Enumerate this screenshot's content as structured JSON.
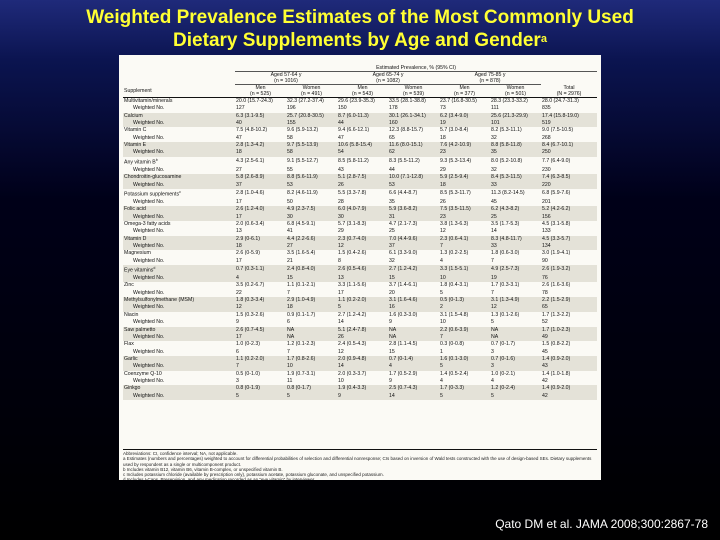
{
  "title": {
    "line1": "Weighted Prevalence Estimates of the Most Commonly Used",
    "line2": "Dietary Supplements by Age and Gender",
    "superscript": "a"
  },
  "table": {
    "caption": "Estimated Prevalence, % (95% CI)",
    "supplement_header": "Supplement",
    "groups": [
      {
        "label": "Aged 57-64 y",
        "n": "(n = 1016)"
      },
      {
        "label": "Aged 65-74 y",
        "n": "(n = 1082)"
      },
      {
        "label": "Aged 75-85 y",
        "n": "(n = 878)"
      }
    ],
    "columns": [
      "Men (n = 525)",
      "Women (n = 491)",
      "Men (n = 543)",
      "Women (n = 539)",
      "Men (n = 377)",
      "Women (n = 501)",
      "Total (N = 2976)"
    ],
    "rows": [
      {
        "label": "Multivitamin/minerals",
        "sub": false,
        "cells": [
          "20.0 (15.7-24.3)",
          "32.3 (27.2-37.4)",
          "29.6 (23.9-35.3)",
          "33.5 (28.1-38.8)",
          "23.7 (16.8-30.5)",
          "28.3 (23.3-33.2)",
          "28.0 (24.7-31.3)"
        ]
      },
      {
        "label": "Weighted No.",
        "sub": true,
        "cells": [
          "127",
          "196",
          "150",
          "178",
          "73",
          "111",
          "835"
        ]
      },
      {
        "label": "Calcium",
        "sub": false,
        "cells": [
          "6.3 (3.1-9.5)",
          "25.7 (20.8-30.5)",
          "8.7 (6.0-11.3)",
          "30.1 (26.1-34.1)",
          "6.2 (3.4-9.0)",
          "25.6 (21.3-29.9)",
          "17.4 (15.8-19.0)"
        ]
      },
      {
        "label": "Weighted No.",
        "sub": true,
        "cells": [
          "40",
          "155",
          "44",
          "160",
          "19",
          "101",
          "519"
        ]
      },
      {
        "label": "Vitamin C",
        "sub": false,
        "cells": [
          "7.5 (4.8-10.2)",
          "9.6 (5.9-13.2)",
          "9.4 (6.6-12.1)",
          "12.3 (8.8-15.7)",
          "5.7 (3.0-8.4)",
          "8.2 (5.3-11.1)",
          "9.0 (7.5-10.5)"
        ]
      },
      {
        "label": "Weighted No.",
        "sub": true,
        "cells": [
          "47",
          "58",
          "47",
          "65",
          "18",
          "32",
          "268"
        ]
      },
      {
        "label": "Vitamin E",
        "sub": false,
        "cells": [
          "2.8 (1.3-4.2)",
          "9.7 (5.5-13.9)",
          "10.6 (5.8-15.4)",
          "11.6 (8.0-15.1)",
          "7.6 (4.2-10.9)",
          "8.8 (5.8-11.8)",
          "8.4 (6.7-10.1)"
        ]
      },
      {
        "label": "Weighted No.",
        "sub": true,
        "cells": [
          "18",
          "58",
          "54",
          "62",
          "23",
          "35",
          "250"
        ]
      },
      {
        "label": "Any vitamin B",
        "sup": "b",
        "sub": false,
        "cells": [
          "4.3 (2.5-6.1)",
          "9.1 (5.5-12.7)",
          "8.5 (5.8-11.2)",
          "8.3 (5.5-11.2)",
          "9.3 (5.3-13.4)",
          "8.0 (5.2-10.8)",
          "7.7 (6.4-9.0)"
        ]
      },
      {
        "label": "Weighted No.",
        "sub": true,
        "cells": [
          "27",
          "55",
          "43",
          "44",
          "29",
          "32",
          "230"
        ]
      },
      {
        "label": "Chondroitin-glucosamine",
        "sub": false,
        "cells": [
          "5.8 (2.6-8.9)",
          "8.8 (5.6-11.9)",
          "5.1 (2.8-7.5)",
          "10.0 (7.1-12.8)",
          "5.9 (2.5-9.4)",
          "8.4 (5.3-11.5)",
          "7.4 (6.3-8.5)"
        ]
      },
      {
        "label": "Weighted No.",
        "sub": true,
        "cells": [
          "37",
          "53",
          "26",
          "53",
          "18",
          "33",
          "220"
        ]
      },
      {
        "label": "Potassium supplements",
        "sup": "c",
        "sub": false,
        "cells": [
          "2.8 (1.0-4.6)",
          "8.2 (4.6-11.9)",
          "5.5 (3.3-7.8)",
          "6.6 (4.4-8.7)",
          "8.5 (5.3-11.7)",
          "11.3 (8.2-14.5)",
          "6.8 (5.9-7.6)"
        ]
      },
      {
        "label": "Weighted No.",
        "sub": true,
        "cells": [
          "17",
          "50",
          "28",
          "35",
          "26",
          "45",
          "201"
        ]
      },
      {
        "label": "Folic acid",
        "sub": false,
        "cells": [
          "2.6 (1.2-4.0)",
          "4.9 (2.3-7.5)",
          "6.0 (4.0-7.9)",
          "5.9 (3.6-8.2)",
          "7.5 (3.5-11.5)",
          "6.2 (4.3-8.2)",
          "5.2 (4.2-6.2)"
        ]
      },
      {
        "label": "Weighted No.",
        "sub": true,
        "cells": [
          "17",
          "30",
          "30",
          "31",
          "23",
          "25",
          "156"
        ]
      },
      {
        "label": "Omega-3 fatty acids",
        "sub": false,
        "cells": [
          "2.0 (0.6-3.4)",
          "6.8 (4.5-9.1)",
          "5.7 (3.1-8.3)",
          "4.7 (2.1-7.3)",
          "3.8 (1.3-6.3)",
          "3.5 (1.7-5.3)",
          "4.5 (3.1-5.8)"
        ]
      },
      {
        "label": "Weighted No.",
        "sub": true,
        "cells": [
          "13",
          "41",
          "29",
          "25",
          "12",
          "14",
          "133"
        ]
      },
      {
        "label": "Vitamin D",
        "sub": false,
        "cells": [
          "2.9 (0-6.1)",
          "4.4 (2.2-6.6)",
          "2.3 (0.7-4.0)",
          "7.0 (4.4-9.6)",
          "2.3 (0.6-4.1)",
          "8.3 (4.8-11.7)",
          "4.5 (3.3-5.7)"
        ]
      },
      {
        "label": "Weighted No.",
        "sub": true,
        "cells": [
          "18",
          "27",
          "12",
          "37",
          "7",
          "33",
          "134"
        ]
      },
      {
        "label": "Magnesium",
        "sub": false,
        "cells": [
          "2.6 (0-5.9)",
          "3.5 (1.6-5.4)",
          "1.5 (0.4-2.6)",
          "6.1 (3.3-9.0)",
          "1.3 (0.2-2.5)",
          "1.8 (0.6-3.0)",
          "3.0 (1.9-4.1)"
        ]
      },
      {
        "label": "Weighted No.",
        "sub": true,
        "cells": [
          "17",
          "21",
          "8",
          "32",
          "4",
          "7",
          "90"
        ]
      },
      {
        "label": "Eye vitamins",
        "sup": "d",
        "sub": false,
        "cells": [
          "0.7 (0.3-1.1)",
          "2.4 (0.8-4.0)",
          "2.6 (0.5-4.6)",
          "2.7 (1.2-4.2)",
          "3.3 (1.5-5.1)",
          "4.9 (2.5-7.3)",
          "2.6 (1.9-3.2)"
        ]
      },
      {
        "label": "Weighted No.",
        "sub": true,
        "cells": [
          "4",
          "15",
          "13",
          "15",
          "10",
          "19",
          "76"
        ]
      },
      {
        "label": "Zinc",
        "sub": false,
        "cells": [
          "3.5 (0.2-6.7)",
          "1.1 (0.1-2.1)",
          "3.3 (1.1-5.6)",
          "3.7 (1.4-6.1)",
          "1.8 (0.4-3.1)",
          "1.7 (0.3-3.1)",
          "2.6 (1.6-3.6)"
        ]
      },
      {
        "label": "Weighted No.",
        "sub": true,
        "cells": [
          "22",
          "7",
          "17",
          "20",
          "5",
          "7",
          "78"
        ]
      },
      {
        "label": "Methylsulfonylmethane (MSM)",
        "sub": false,
        "cells": [
          "1.8 (0.3-3.4)",
          "2.9 (1.0-4.9)",
          "1.1 (0.2-2.0)",
          "3.1 (1.6-4.6)",
          "0.5 (0-1.3)",
          "3.1 (1.3-4.9)",
          "2.2 (1.5-2.9)"
        ]
      },
      {
        "label": "Weighted No.",
        "sub": true,
        "cells": [
          "12",
          "18",
          "5",
          "16",
          "2",
          "12",
          "65"
        ]
      },
      {
        "label": "Niacin",
        "sub": false,
        "cells": [
          "1.5 (0.3-2.6)",
          "0.9 (0.1-1.7)",
          "2.7 (1.2-4.2)",
          "1.6 (0.3-3.0)",
          "3.1 (1.5-4.8)",
          "1.3 (0.1-2.6)",
          "1.7 (1.3-2.2)"
        ]
      },
      {
        "label": "Weighted No.",
        "sub": true,
        "cells": [
          "9",
          "6",
          "14",
          "9",
          "10",
          "5",
          "52"
        ]
      },
      {
        "label": "Saw palmetto",
        "sub": false,
        "cells": [
          "2.6 (0.7-4.5)",
          "NA",
          "5.1 (2.4-7.8)",
          "NA",
          "2.2 (0.6-3.9)",
          "NA",
          "1.7 (1.0-2.3)"
        ]
      },
      {
        "label": "Weighted No.",
        "sub": true,
        "cells": [
          "17",
          "NA",
          "26",
          "NA",
          "7",
          "NA",
          "49"
        ]
      },
      {
        "label": "Flax",
        "sub": false,
        "cells": [
          "1.0 (0-2.3)",
          "1.2 (0.1-2.3)",
          "2.4 (0.5-4.3)",
          "2.8 (1.1-4.5)",
          "0.3 (0-0.8)",
          "0.7 (0-1.7)",
          "1.5 (0.8-2.2)"
        ]
      },
      {
        "label": "Weighted No.",
        "sub": true,
        "cells": [
          "6",
          "7",
          "12",
          "15",
          "1",
          "3",
          "45"
        ]
      },
      {
        "label": "Garlic",
        "sub": false,
        "cells": [
          "1.1 (0.2-2.0)",
          "1.7 (0.8-2.6)",
          "2.0 (0.9-4.8)",
          "0.7 (0-1.4)",
          "1.6 (0.1-3.0)",
          "0.7 (0-1.6)",
          "1.4 (0.9-2.0)"
        ]
      },
      {
        "label": "Weighted No.",
        "sub": true,
        "cells": [
          "7",
          "10",
          "14",
          "4",
          "5",
          "3",
          "43"
        ]
      },
      {
        "label": "Coenzyme Q-10",
        "sub": false,
        "cells": [
          "0.5 (0-1.0)",
          "1.9 (0.7-3.1)",
          "2.0 (0.3-3.7)",
          "1.7 (0.5-2.9)",
          "1.4 (0.5-2.4)",
          "1.0 (0-2.1)",
          "1.4 (1.0-1.8)"
        ]
      },
      {
        "label": "Weighted No.",
        "sub": true,
        "cells": [
          "3",
          "11",
          "10",
          "9",
          "4",
          "4",
          "42"
        ]
      },
      {
        "label": "Ginkgo",
        "sub": false,
        "cells": [
          "0.8 (0-1.9)",
          "0.8 (0-1.7)",
          "1.9 (0.4-3.3)",
          "2.5 (0.7-4.3)",
          "1.7 (0-3.3)",
          "1.2 (0-2.4)",
          "1.4 (0.9-2.0)"
        ]
      },
      {
        "label": "Weighted No.",
        "sub": true,
        "cells": [
          "5",
          "5",
          "9",
          "14",
          "5",
          "5",
          "42"
        ]
      }
    ],
    "footnotes": [
      "Abbreviations: CI, confidence interval; NA, not applicable.",
      "a Estimates (numbers and percentages) weighted to account for differential probabilities of selection and differential nonresponse; CIs based on inversion of Wald tests constructed with the use of design-based SEs. Dietary supplements used by respondent as a single or multicomponent product.",
      "b Includes vitamin B12, vitamin B6, vitamin B-complex, or unspecified vitamin B.",
      "c Includes potassium chloride (available by prescription only), potassium acetate, potassium gluconate, and unspecified potassium.",
      "d Includes I-Caps, Preservision, and any medication recorded as an \"eye vitamin\" by interviewer."
    ]
  },
  "citation": "Qato DM et al. JAMA 2008;300:2867-78"
}
